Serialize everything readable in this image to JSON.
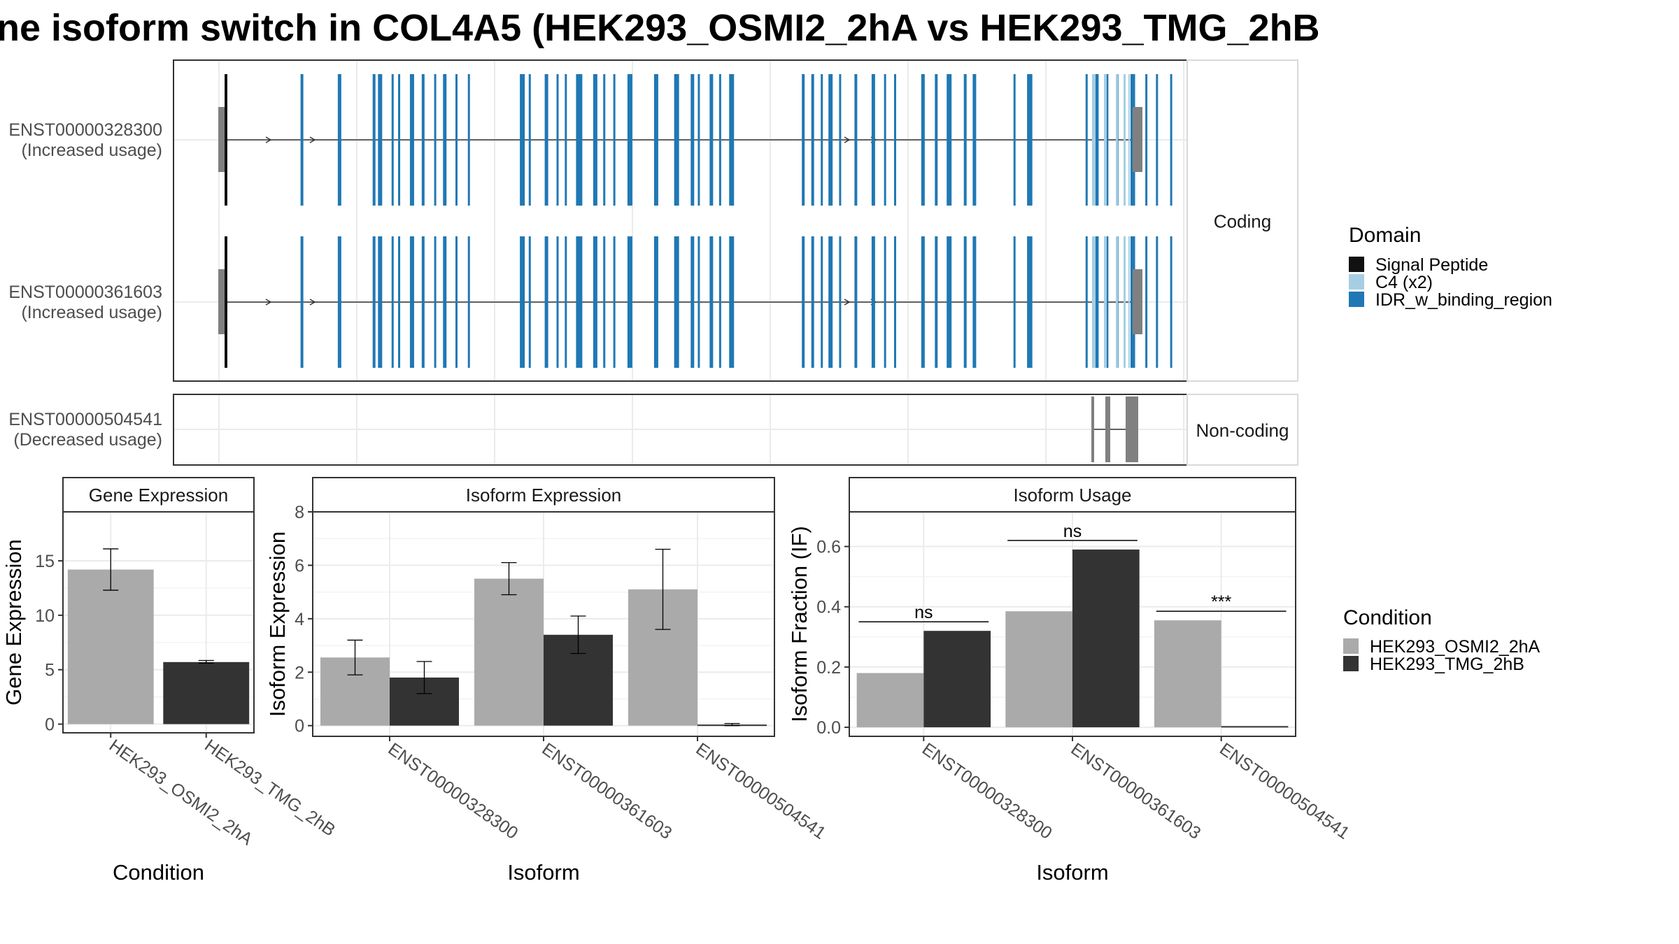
{
  "title": "ne isoform switch in COL4A5 (HEK293_OSMI2_2hA vs HEK293_TMG_2hB",
  "colors": {
    "signal_peptide": "#111111",
    "c4": "#a6cee3",
    "idr": "#1f78b4",
    "utr": "#808080",
    "cond_a": "#aaaaaa",
    "cond_b": "#333333",
    "grid": "#ebebeb",
    "border": "#333333"
  },
  "transcript_panel": {
    "groups": [
      {
        "label": "Coding",
        "transcripts": [
          {
            "id": "ENST00000328300",
            "usage": "(Increased usage)"
          },
          {
            "id": "ENST00000361603",
            "usage": "(Increased usage)"
          }
        ]
      },
      {
        "label": "Non-coding",
        "transcripts": [
          {
            "id": "ENST00000504541",
            "usage": "(Decreased usage)"
          }
        ]
      }
    ],
    "domain_legend": {
      "title": "Domain",
      "items": [
        {
          "label": "Signal Peptide",
          "color": "#111111"
        },
        {
          "label": "C4 (x2)",
          "color": "#a6cee3"
        },
        {
          "label": "IDR_w_binding_region",
          "color": "#1f78b4"
        }
      ]
    }
  },
  "condition_legend": {
    "title": "Condition",
    "items": [
      {
        "label": "HEK293_OSMI2_2hA",
        "color": "#aaaaaa"
      },
      {
        "label": "HEK293_TMG_2hB",
        "color": "#333333"
      }
    ]
  },
  "chart_data": [
    {
      "type": "bar",
      "title": "Gene Expression",
      "xlabel": "Condition",
      "ylabel": "Gene Expression",
      "categories": [
        "HEK293_OSMI2_2hA",
        "HEK293_TMG_2hB"
      ],
      "values": [
        14.2,
        5.7
      ],
      "errors": [
        [
          12.3,
          16.1
        ],
        [
          5.6,
          5.85
        ]
      ],
      "ylim": [
        -0.8,
        19.5
      ],
      "yticks": [
        0,
        5,
        10,
        15
      ]
    },
    {
      "type": "bar",
      "title": "Isoform Expression",
      "xlabel": "Isoform",
      "ylabel": "Isoform Expression",
      "categories": [
        "ENST00000328300",
        "ENST00000361603",
        "ENST00000504541"
      ],
      "series": [
        {
          "name": "HEK293_OSMI2_2hA",
          "values": [
            2.55,
            5.5,
            5.1
          ],
          "errors": [
            [
              1.9,
              3.2
            ],
            [
              4.9,
              6.1
            ],
            [
              3.6,
              6.6
            ]
          ]
        },
        {
          "name": "HEK293_TMG_2hB",
          "values": [
            1.8,
            3.4,
            0.04
          ],
          "errors": [
            [
              1.2,
              2.4
            ],
            [
              2.7,
              4.1
            ],
            [
              0.0,
              0.08
            ]
          ]
        }
      ],
      "ylim": [
        -0.4,
        8.0
      ],
      "yticks": [
        0,
        2,
        4,
        6,
        8
      ]
    },
    {
      "type": "bar",
      "title": "Isoform Usage",
      "xlabel": "Isoform",
      "ylabel": "Isoform Fraction (IF)",
      "categories": [
        "ENST00000328300",
        "ENST00000361603",
        "ENST00000504541"
      ],
      "series": [
        {
          "name": "HEK293_OSMI2_2hA",
          "values": [
            0.18,
            0.385,
            0.355
          ]
        },
        {
          "name": "HEK293_TMG_2hB",
          "values": [
            0.32,
            0.59,
            0.004
          ]
        }
      ],
      "significance": [
        "ns",
        "ns",
        "***"
      ],
      "ylim": [
        -0.03,
        0.715
      ],
      "yticks": [
        0.0,
        0.2,
        0.4,
        0.6
      ],
      "ytick_labels": [
        "0.0",
        "0.2",
        "0.4",
        "0.6"
      ]
    }
  ]
}
